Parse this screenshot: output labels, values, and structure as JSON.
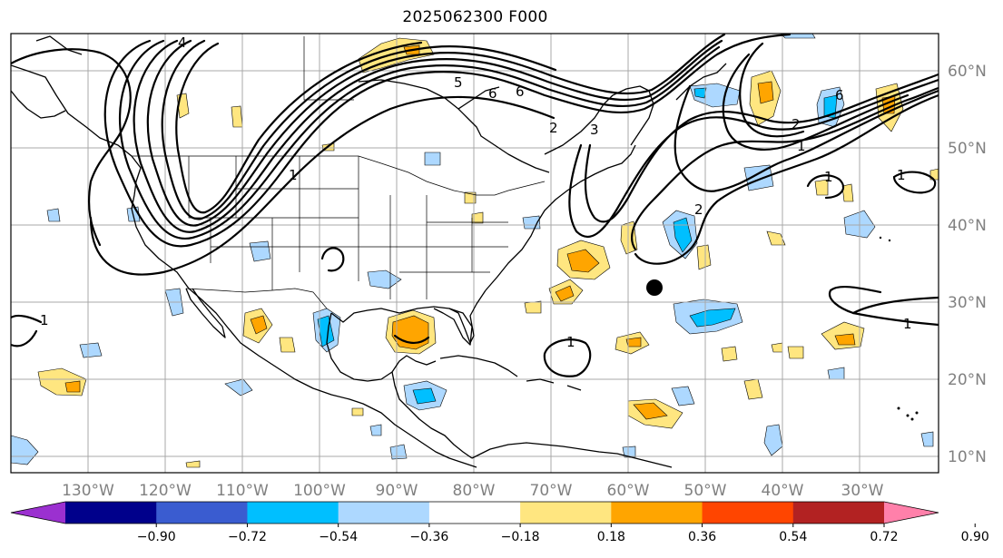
{
  "title": "2025062300 F000",
  "longitude_labels": [
    "130°W",
    "120°W",
    "110°W",
    "100°W",
    "90°W",
    "80°W",
    "70°W",
    "60°W",
    "50°W",
    "40°W",
    "30°W"
  ],
  "latitude_labels": [
    "60°N",
    "50°N",
    "40°N",
    "30°N",
    "20°N",
    "10°N"
  ],
  "colorbar": {
    "ticks": [
      "−0.90",
      "−0.72",
      "−0.54",
      "−0.36",
      "−0.18",
      "0.18",
      "0.36",
      "0.54",
      "0.72",
      "0.90"
    ],
    "colors": [
      "#9b30d0",
      "#00008b",
      "#3a5cd0",
      "#00bfff",
      "#add8ff",
      "#ffffff",
      "#ffe680",
      "#ffa500",
      "#ff4500",
      "#b22222",
      "#ff80aa"
    ]
  },
  "contour_labels": [
    "4",
    "1",
    "6",
    "6",
    "2",
    "3",
    "5",
    "1",
    "1",
    "1",
    "2",
    "6",
    "2",
    "1",
    "1",
    "1"
  ],
  "marker": "black dot"
}
